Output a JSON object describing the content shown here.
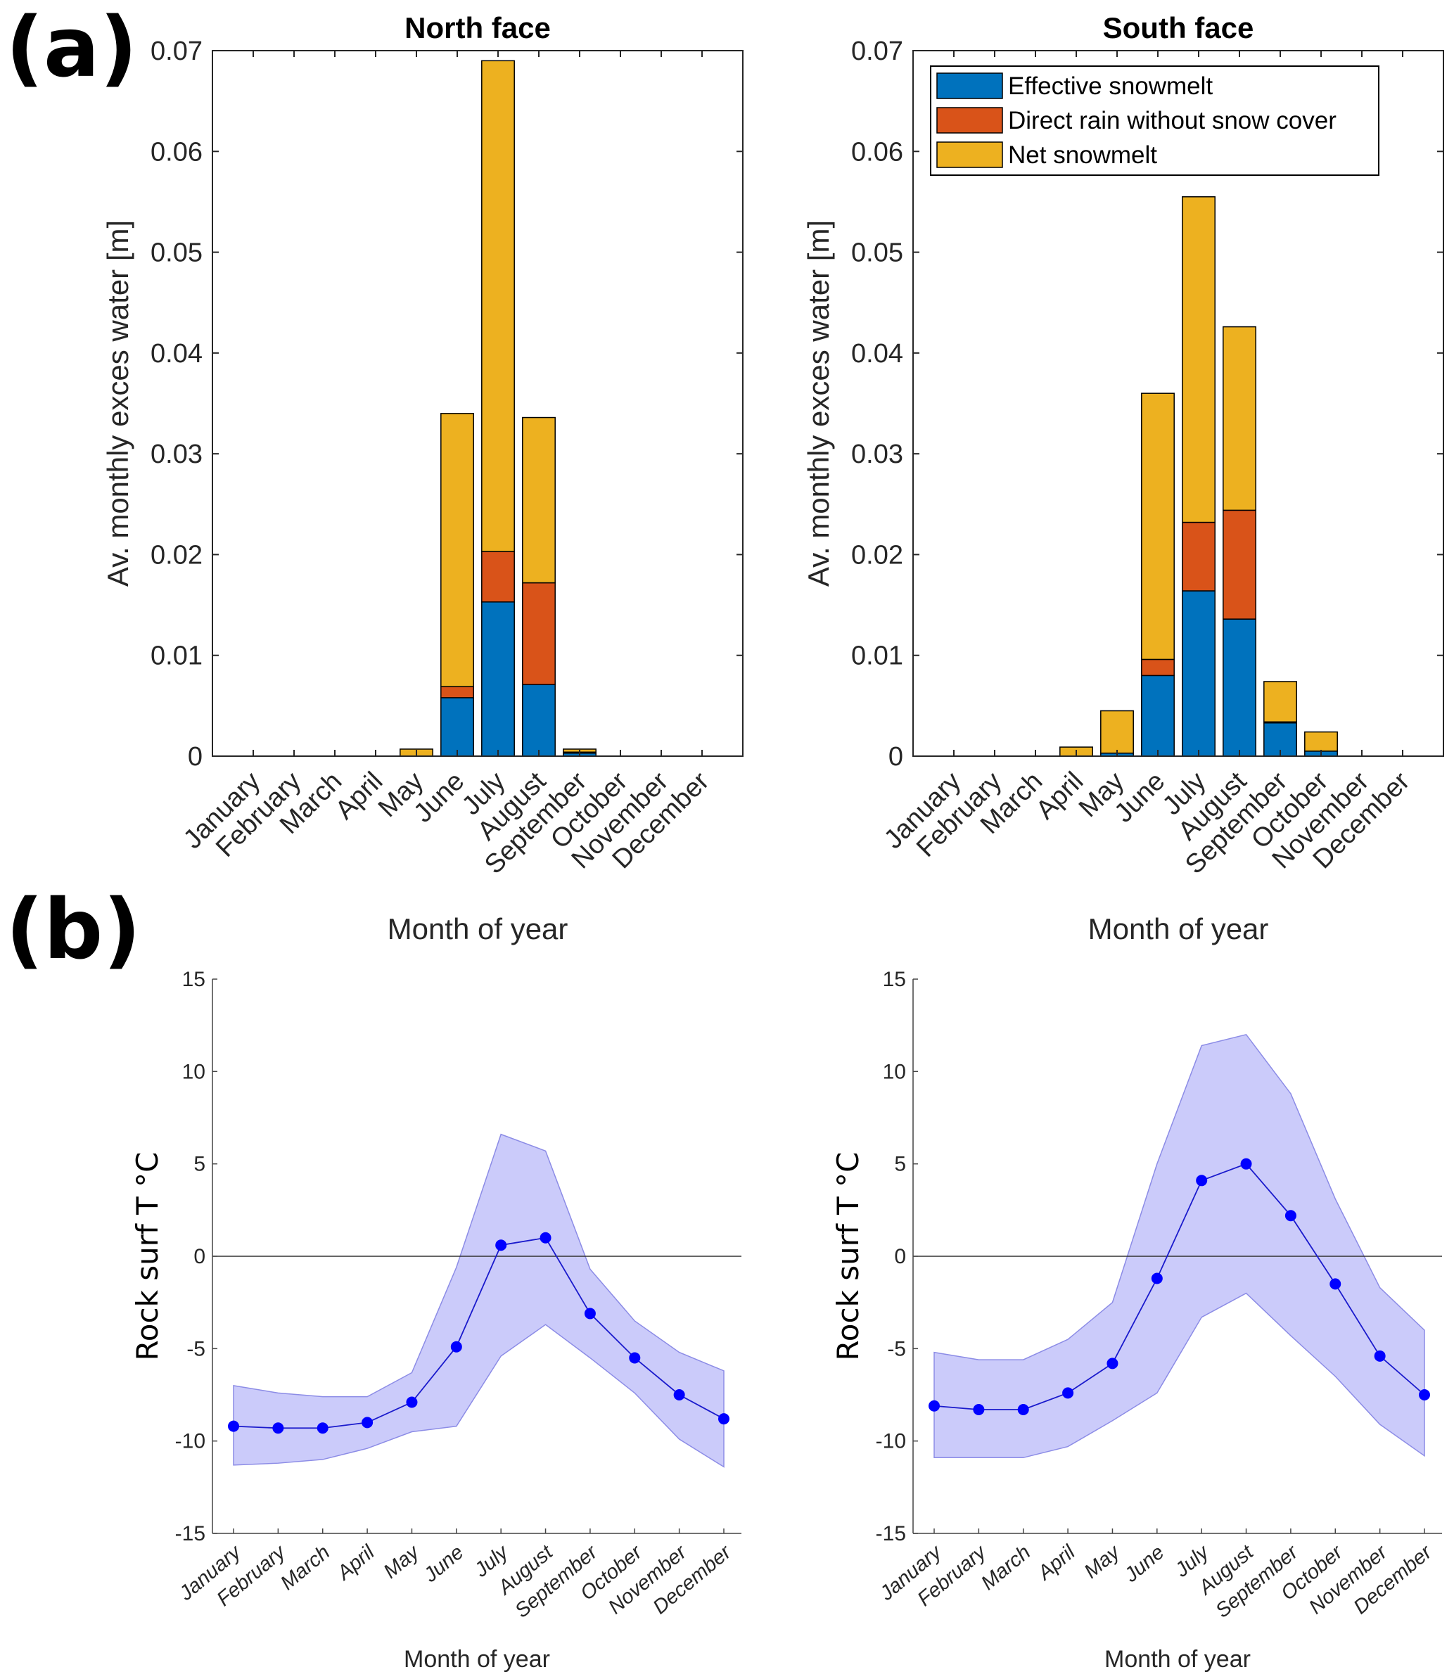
{
  "panels": {
    "a_label": "(a)",
    "b_label": "(b)"
  },
  "colors": {
    "effective_snowmelt": "#0072BD",
    "direct_rain": "#D95319",
    "net_snowmelt": "#EDB120",
    "temp_line": "#0000FF",
    "temp_band": "#C8C8FA",
    "axis": "#262626"
  },
  "chart_data": [
    {
      "id": "north_excess",
      "type": "bar",
      "stacked": true,
      "title": "North face",
      "xlabel": "Month of year",
      "ylabel": "Av. monthly exces water [m]",
      "ylim": [
        0,
        0.07
      ],
      "yticks": [
        0,
        0.01,
        0.02,
        0.03,
        0.04,
        0.05,
        0.06,
        0.07
      ],
      "ytick_labels": [
        "0",
        "0.01",
        "0.02",
        "0.03",
        "0.04",
        "0.05",
        "0.06",
        "0.07"
      ],
      "categories": [
        "January",
        "February",
        "March",
        "April",
        "May",
        "June",
        "July",
        "August",
        "September",
        "October",
        "November",
        "December"
      ],
      "series": [
        {
          "name": "Effective snowmelt",
          "values": [
            0,
            0,
            0,
            0,
            0,
            0.0058,
            0.0153,
            0.0071,
            0.0003,
            0,
            0,
            0
          ]
        },
        {
          "name": "Direct rain without snow cover",
          "values": [
            0,
            0,
            0,
            0,
            0,
            0.0011,
            0.005,
            0.0101,
            0.0001,
            0,
            0,
            0
          ]
        },
        {
          "name": "Net snowmelt",
          "values": [
            0,
            0,
            0,
            0,
            0.0007,
            0.0271,
            0.0487,
            0.0164,
            0.0003,
            0,
            0,
            0
          ]
        }
      ],
      "legend": null,
      "grid": false
    },
    {
      "id": "south_excess",
      "type": "bar",
      "stacked": true,
      "title": "South face",
      "xlabel": "Month of year",
      "ylabel": "Av. monthly exces water [m]",
      "ylim": [
        0,
        0.07
      ],
      "yticks": [
        0,
        0.01,
        0.02,
        0.03,
        0.04,
        0.05,
        0.06,
        0.07
      ],
      "ytick_labels": [
        "0",
        "0.01",
        "0.02",
        "0.03",
        "0.04",
        "0.05",
        "0.06",
        "0.07"
      ],
      "categories": [
        "January",
        "February",
        "March",
        "April",
        "May",
        "June",
        "July",
        "August",
        "September",
        "October",
        "November",
        "December"
      ],
      "series": [
        {
          "name": "Effective snowmelt",
          "values": [
            0,
            0,
            0,
            0,
            0.0003,
            0.008,
            0.0164,
            0.0136,
            0.0033,
            0.0005,
            0,
            0
          ]
        },
        {
          "name": "Direct rain without snow cover",
          "values": [
            0,
            0,
            0,
            0,
            0,
            0.0016,
            0.0068,
            0.0108,
            0.0001,
            0,
            0,
            0
          ]
        },
        {
          "name": "Net snowmelt",
          "values": [
            0,
            0,
            0,
            0.0009,
            0.0042,
            0.0264,
            0.0323,
            0.0182,
            0.004,
            0.0019,
            0,
            0
          ]
        }
      ],
      "legend": {
        "position": "top-left",
        "entries": [
          "Effective snowmelt",
          "Direct rain without snow cover",
          "Net snowmelt"
        ]
      },
      "grid": false
    },
    {
      "id": "north_temp",
      "type": "line",
      "title": "",
      "xlabel": "Month of year",
      "ylabel": "Rock surf T °C",
      "ylim": [
        -15,
        15
      ],
      "yticks": [
        -15,
        -10,
        -5,
        0,
        5,
        10,
        15
      ],
      "ytick_labels": [
        "-15",
        "-10",
        "-5",
        "0",
        "5",
        "10",
        "15"
      ],
      "categories": [
        "January",
        "February",
        "March",
        "April",
        "May",
        "June",
        "July",
        "August",
        "September",
        "October",
        "November",
        "December"
      ],
      "mean": [
        -9.2,
        -9.3,
        -9.3,
        -9.0,
        -7.9,
        -4.9,
        0.6,
        1.0,
        -3.1,
        -5.5,
        -7.5,
        -8.8
      ],
      "band_upper": [
        -7.0,
        -7.4,
        -7.6,
        -7.6,
        -6.3,
        -0.6,
        6.6,
        5.7,
        -0.7,
        -3.5,
        -5.2,
        -6.2
      ],
      "band_lower": [
        -11.3,
        -11.2,
        -11.0,
        -10.4,
        -9.5,
        -9.2,
        -5.4,
        -3.7,
        -5.5,
        -7.4,
        -9.9,
        -11.4
      ],
      "reference_line": 0,
      "grid": false
    },
    {
      "id": "south_temp",
      "type": "line",
      "title": "",
      "xlabel": "Month of year",
      "ylabel": "Rock surf T °C",
      "ylim": [
        -15,
        15
      ],
      "yticks": [
        -15,
        -10,
        -5,
        0,
        5,
        10,
        15
      ],
      "ytick_labels": [
        "-15",
        "-10",
        "-5",
        "0",
        "5",
        "10",
        "15"
      ],
      "categories": [
        "January",
        "February",
        "March",
        "April",
        "May",
        "June",
        "July",
        "August",
        "September",
        "October",
        "November",
        "December"
      ],
      "mean": [
        -8.1,
        -8.3,
        -8.3,
        -7.4,
        -5.8,
        -1.2,
        4.1,
        5.0,
        2.2,
        -1.5,
        -5.4,
        -7.5
      ],
      "band_upper": [
        -5.2,
        -5.6,
        -5.6,
        -4.5,
        -2.5,
        5.0,
        11.4,
        12.0,
        8.8,
        3.1,
        -1.7,
        -4.0
      ],
      "band_lower": [
        -10.9,
        -10.9,
        -10.9,
        -10.3,
        -8.9,
        -7.4,
        -3.3,
        -2.0,
        -4.3,
        -6.5,
        -9.1,
        -10.8
      ],
      "reference_line": 0,
      "grid": false
    }
  ]
}
